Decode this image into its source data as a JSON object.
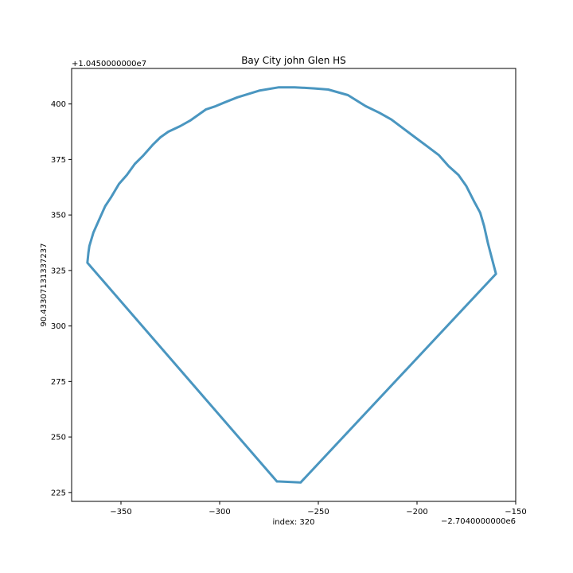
{
  "chart_data": {
    "type": "line",
    "title": "Bay City john Glen HS",
    "xlabel": "index: 320",
    "ylabel": "90.4330713133723​7",
    "x_offset_label": "−2.7040000000e6",
    "y_offset_label": "+1.0450000000e7",
    "xlim": [
      -375,
      -150
    ],
    "ylim": [
      221,
      416
    ],
    "xticks": [
      -350,
      -300,
      -250,
      -200,
      -150
    ],
    "xtick_labels": [
      "−350",
      "−300",
      "−250",
      "−200",
      "−150"
    ],
    "yticks": [
      225,
      250,
      275,
      300,
      325,
      350,
      375,
      400
    ],
    "ytick_labels": [
      "225",
      "250",
      "275",
      "300",
      "325",
      "350",
      "375",
      "400"
    ],
    "grid": false,
    "series": [
      {
        "color": "#4a96c0",
        "x": [
          -271,
          -259,
          -160,
          -164,
          -166,
          -168,
          -171,
          -175,
          -179,
          -184,
          -189,
          -195,
          -201,
          -207,
          -213,
          -219,
          -226,
          -235,
          -245,
          -252,
          -262,
          -270,
          -280,
          -291,
          -298,
          -302,
          -307,
          -311,
          -315,
          -320,
          -326,
          -330,
          -334,
          -339,
          -343,
          -347,
          -351,
          -355,
          -358,
          -361,
          -364,
          -366,
          -366.5,
          -367,
          -271
        ],
        "y": [
          230,
          229.5,
          323.5,
          337,
          345,
          351,
          356,
          363,
          368,
          372,
          377,
          381,
          385,
          389,
          393,
          396,
          399,
          404,
          406.5,
          407,
          407.5,
          407.5,
          406,
          403,
          400.5,
          399,
          397.5,
          395,
          392.5,
          390,
          387.5,
          385,
          381.5,
          376.5,
          373,
          368,
          364,
          358,
          354,
          348,
          342,
          336,
          333,
          328.5,
          230
        ]
      }
    ]
  }
}
